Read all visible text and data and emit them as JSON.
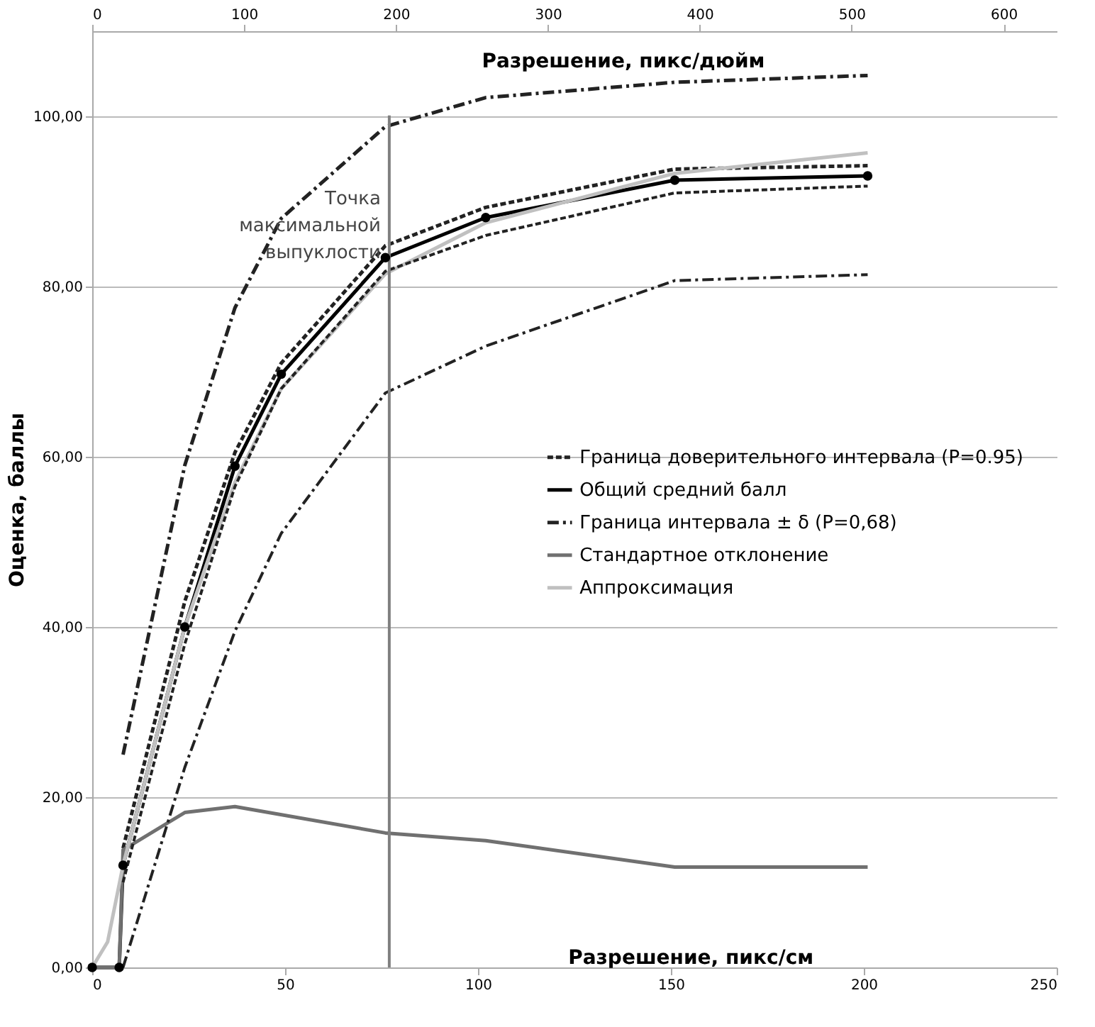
{
  "chart_data": {
    "type": "line",
    "xlabel": "Разрешение, пикс/см",
    "x2label": "Разрешение, пикс/дюйм",
    "ylabel": "Оценка, баллы",
    "xlim": [
      0,
      250
    ],
    "xticks": [
      0,
      50,
      100,
      150,
      200,
      250
    ],
    "x2lim": [
      0,
      635
    ],
    "x2ticks": [
      0,
      100,
      200,
      300,
      400,
      500,
      600
    ],
    "ylim": [
      0,
      110
    ],
    "yticks": [
      {
        "value": 0,
        "label": "0,00"
      },
      {
        "value": 20,
        "label": "20,00"
      },
      {
        "value": 40,
        "label": "40,00"
      },
      {
        "value": 60,
        "label": "60,00"
      },
      {
        "value": 80,
        "label": "80,00"
      },
      {
        "value": 100,
        "label": "100,00"
      }
    ],
    "grid": "y",
    "legend": "right",
    "ref_lines": [
      {
        "axis": "x",
        "value": 77,
        "label": "Точка максимальной выпуклости",
        "color": "#808080",
        "line_style": "solid"
      }
    ],
    "series": [
      {
        "name": "Граница доверительного интервала (P=0.95)",
        "color": "#222222",
        "line_style": "dashed",
        "marker": "none",
        "x": [
          8,
          24,
          37,
          49,
          76,
          102,
          151,
          201
        ],
        "values": [
          14,
          43,
          60.5,
          71,
          84.8,
          89.3,
          93.8,
          94.2
        ]
      },
      {
        "name": "Общий средний балл",
        "color": "#000000",
        "line_style": "solid",
        "marker": "circle",
        "x": [
          0,
          7,
          8,
          24,
          37,
          49,
          76,
          102,
          151,
          201
        ],
        "values": [
          0,
          0,
          12,
          40,
          58.9,
          69.7,
          83.4,
          88.1,
          92.5,
          93
        ]
      },
      {
        "name": "Граница интервала ± δ (P=0,68)",
        "color": "#222222",
        "line_style": "dashdot",
        "marker": "none",
        "x": [
          8,
          24,
          37,
          49,
          76,
          102,
          151,
          201
        ],
        "values": [
          25,
          59,
          77.5,
          88,
          98.8,
          102.2,
          104,
          104.8
        ]
      },
      {
        "name": "Стандартное отклонение",
        "color": "#707070",
        "line_style": "solid",
        "marker": "none",
        "x": [
          0,
          7,
          8,
          24,
          37,
          76,
          102,
          151,
          201
        ],
        "values": [
          0,
          0,
          13.8,
          18.2,
          18.9,
          15.8,
          14.9,
          11.8,
          11.8
        ]
      },
      {
        "name": "Аппроксимация",
        "color": "#c0c0c0",
        "line_style": "solid",
        "marker": "none",
        "x": [
          0,
          4,
          8,
          24,
          37,
          49,
          76,
          102,
          151,
          201
        ],
        "values": [
          0,
          3,
          12,
          40,
          57,
          68,
          81.5,
          87.5,
          93.3,
          95.7
        ]
      },
      {
        "color": "#222222",
        "line_style": "dashed",
        "marker": "none",
        "x": [
          8,
          24,
          37,
          49,
          76,
          102,
          151,
          201
        ],
        "values": [
          10,
          38,
          56.5,
          68,
          81.8,
          86,
          91,
          91.8
        ]
      },
      {
        "color": "#222222",
        "line_style": "dashdot",
        "marker": "none",
        "x": [
          8,
          24,
          37,
          49,
          76,
          102,
          151,
          201
        ],
        "values": [
          0,
          23.5,
          39.5,
          51,
          67.5,
          73,
          80.7,
          81.4
        ]
      }
    ]
  }
}
